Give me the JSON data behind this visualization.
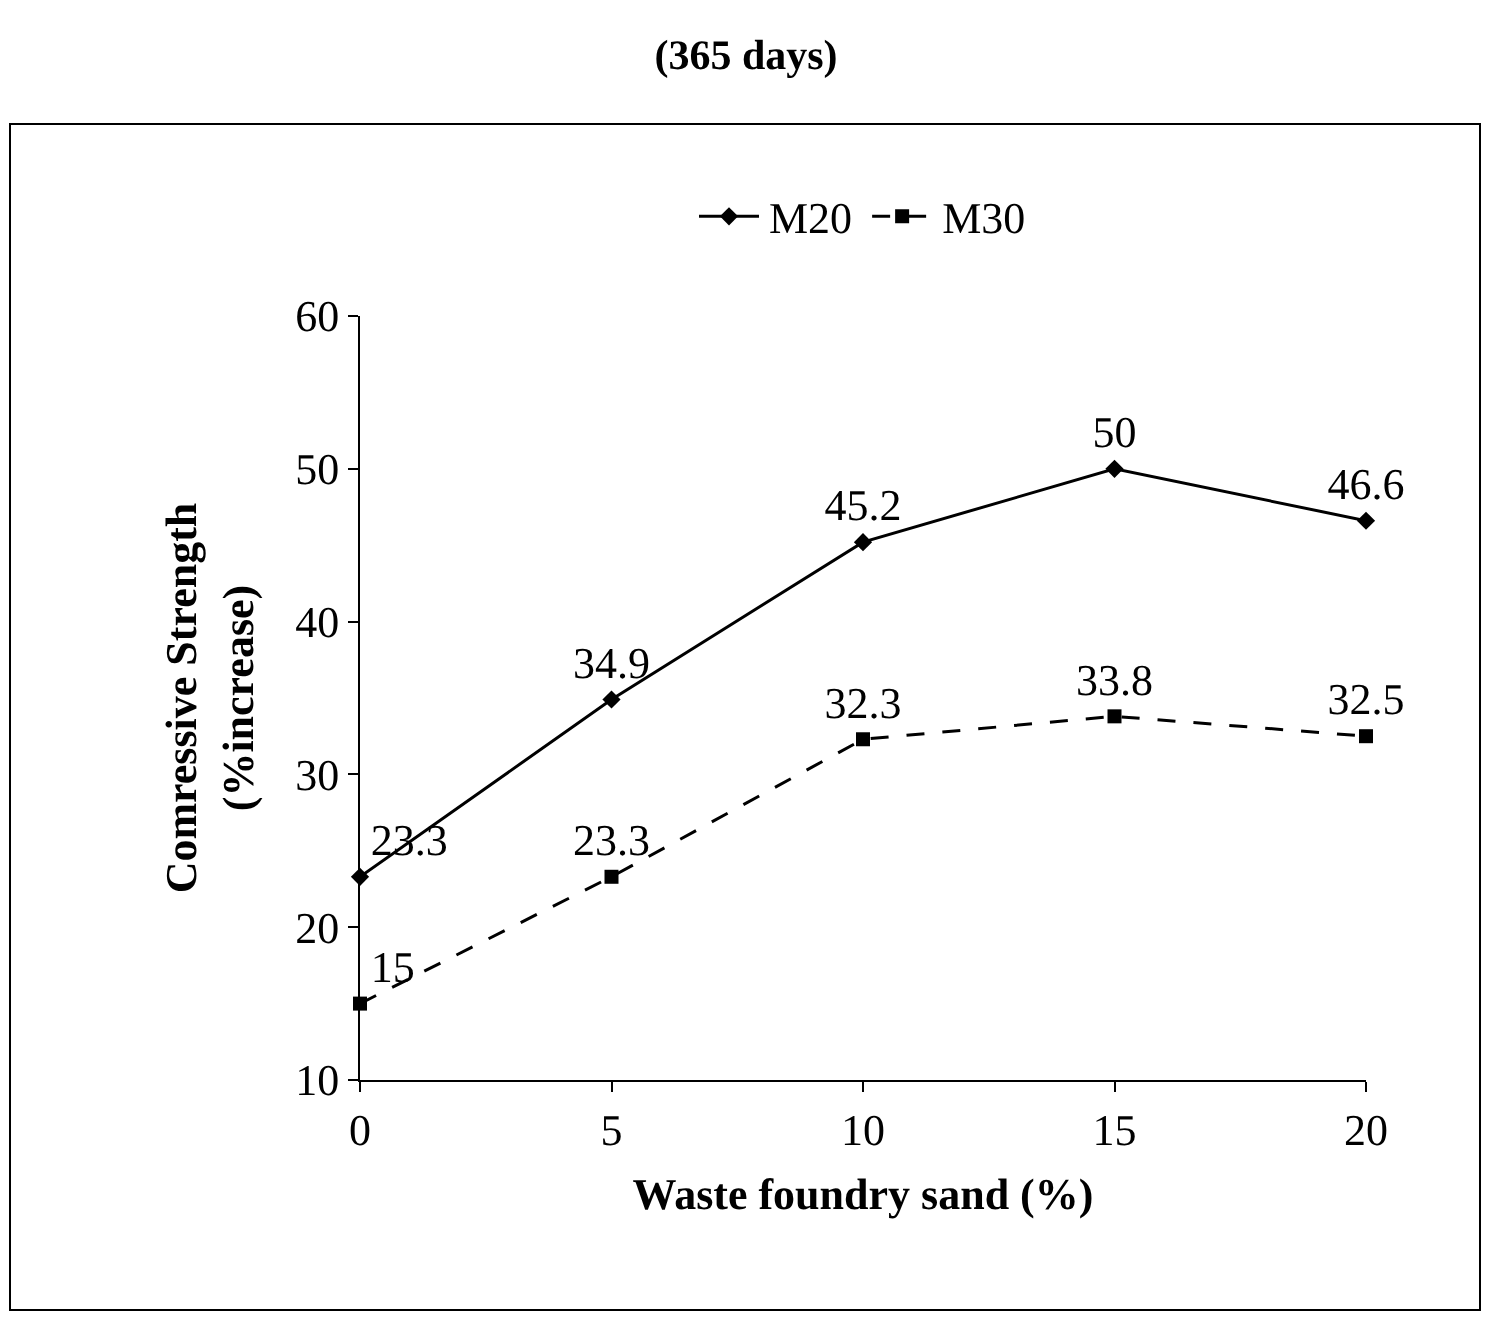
{
  "chart_data": {
    "type": "line",
    "title": "(365 days)",
    "xlabel": "Waste foundry sand (%)",
    "ylabel": "Comressive Strength\n(%increase)",
    "x": [
      0,
      5,
      10,
      15,
      20
    ],
    "series": [
      {
        "name": "M20",
        "color": "#000000",
        "values": [
          23.3,
          34.9,
          45.2,
          50,
          46.6
        ],
        "marker": "diamond",
        "line_style": "solid"
      },
      {
        "name": "M30",
        "color": "#000000",
        "values": [
          15,
          23.3,
          32.3,
          33.8,
          32.5
        ],
        "marker": "square",
        "line_style": "dashed"
      }
    ],
    "xlim": [
      0,
      20
    ],
    "xticks": [
      0,
      5,
      10,
      15,
      20
    ],
    "ylim": [
      10,
      60
    ],
    "yticks": [
      10,
      20,
      30,
      40,
      50,
      60
    ],
    "grid": false,
    "legend": "top",
    "data_labels": true
  }
}
